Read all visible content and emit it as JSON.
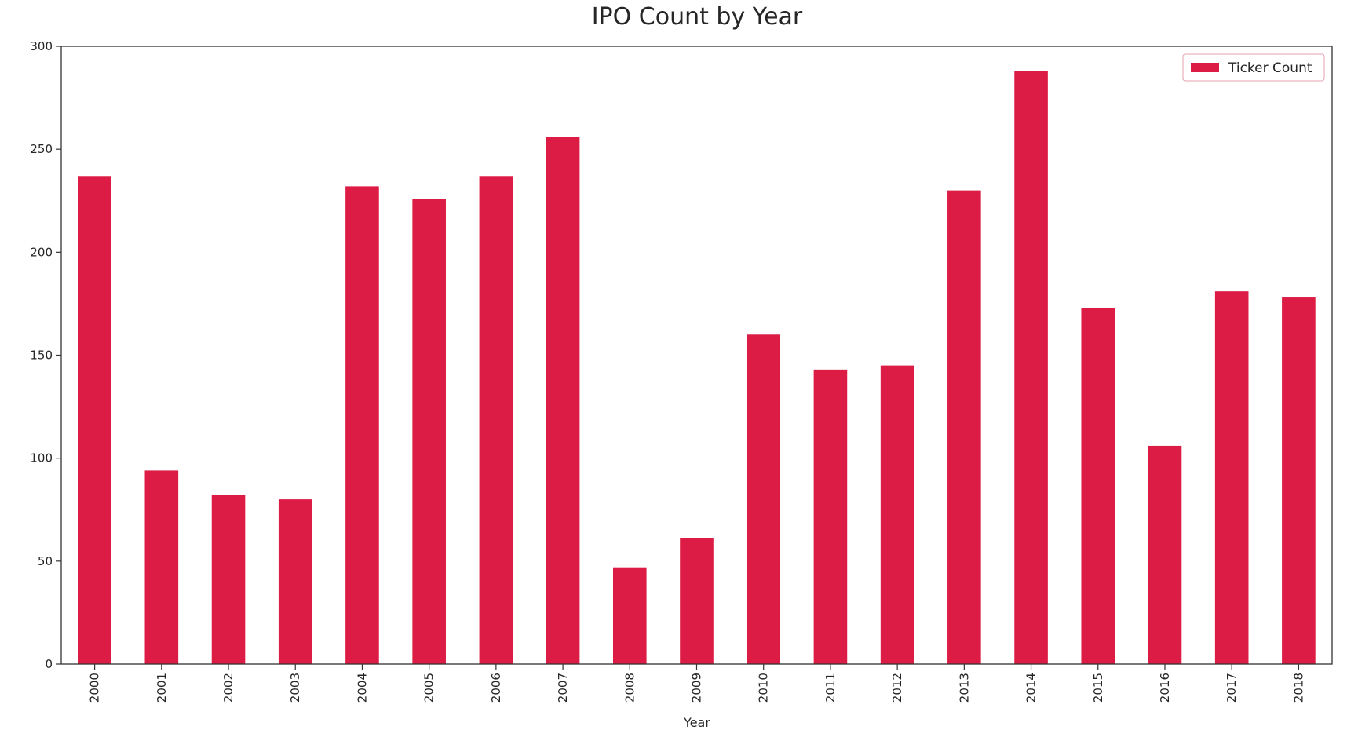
{
  "chart_data": {
    "type": "bar",
    "title": "IPO Count by Year",
    "xlabel": "Year",
    "ylabel": "",
    "categories": [
      "2000",
      "2001",
      "2002",
      "2003",
      "2004",
      "2005",
      "2006",
      "2007",
      "2008",
      "2009",
      "2010",
      "2011",
      "2012",
      "2013",
      "2014",
      "2015",
      "2016",
      "2017",
      "2018"
    ],
    "series": [
      {
        "name": "Ticker Count",
        "color": "#dc1c44",
        "values": [
          237,
          94,
          82,
          80,
          232,
          226,
          237,
          256,
          47,
          61,
          160,
          143,
          145,
          230,
          288,
          173,
          106,
          181,
          178
        ]
      }
    ],
    "ylim": [
      0,
      300
    ],
    "yticks": [
      0,
      50,
      100,
      150,
      200,
      250,
      300
    ],
    "grid": false,
    "legend_position": "top-right"
  }
}
